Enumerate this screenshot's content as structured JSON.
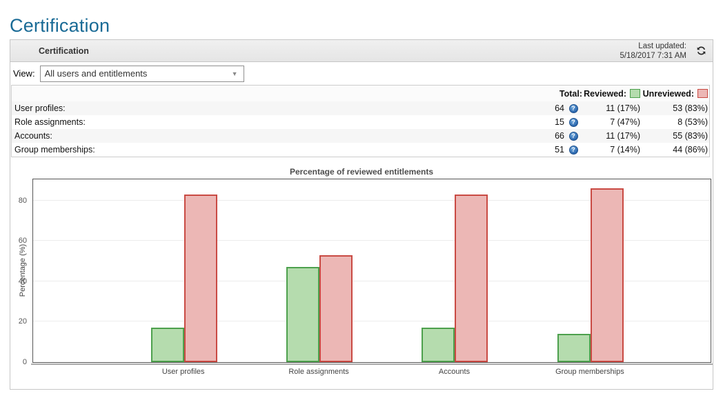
{
  "page": {
    "title": "Certification"
  },
  "panel": {
    "header": {
      "title": "Certification",
      "last_updated_label": "Last updated:",
      "last_updated_value": "5/18/2017 7:31 AM",
      "refresh_icon": "refresh-circular-arrows"
    },
    "view": {
      "label": "View:",
      "selected": "All users and entitlements",
      "arrow_icon": "chevron-down"
    },
    "stats": {
      "columns": {
        "total": "Total:",
        "reviewed": "Reviewed:",
        "unreviewed": "Unreviewed:"
      },
      "help_icon": "question-mark-circle",
      "help_glyph": "?",
      "colors": {
        "reviewed_fill": "#b5dcae",
        "reviewed_border": "#4da04d",
        "unreviewed_fill": "#ecb7b5",
        "unreviewed_border": "#c94a43"
      },
      "rows": [
        {
          "label": "User profiles:",
          "total": "64",
          "reviewed": "11 (17%)",
          "unreviewed": "53 (83%)"
        },
        {
          "label": "Role assignments:",
          "total": "15",
          "reviewed": "7 (47%)",
          "unreviewed": "8 (53%)"
        },
        {
          "label": "Accounts:",
          "total": "66",
          "reviewed": "11 (17%)",
          "unreviewed": "55 (83%)"
        },
        {
          "label": "Group memberships:",
          "total": "51",
          "reviewed": "7 (14%)",
          "unreviewed": "44 (86%)"
        }
      ]
    }
  },
  "chart_data": {
    "type": "bar",
    "title": "Percentage of reviewed entitlements",
    "ylabel": "Percentage (%)",
    "xlabel": "",
    "categories": [
      "User profiles",
      "Role assignments",
      "Accounts",
      "Group memberships"
    ],
    "series": [
      {
        "name": "Reviewed",
        "color": "#b5dcae",
        "border": "#4da04d",
        "values": [
          17,
          47,
          17,
          14
        ]
      },
      {
        "name": "Unreviewed",
        "color": "#ecb7b5",
        "border": "#c94a43",
        "values": [
          83,
          53,
          83,
          86
        ]
      }
    ],
    "ylim": [
      0,
      90.5
    ],
    "yticks": [
      0,
      20,
      40,
      60,
      80
    ],
    "grid": true,
    "legend_position": "none"
  }
}
